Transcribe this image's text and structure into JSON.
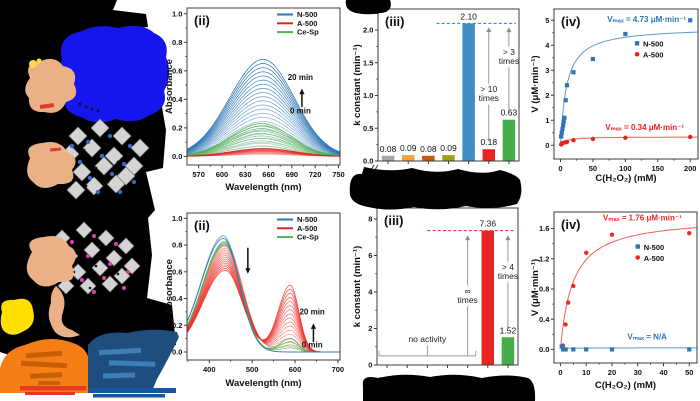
{
  "figure": {
    "background": "#ffffff",
    "redaction_color": "#000000"
  },
  "illustration": {
    "name": "redacted-synthesis-scheme",
    "colors": {
      "black": "#000000",
      "enzyme_blue": "#1515ee",
      "peach": "#e9b185",
      "peach_accent_red": "#e23b2e",
      "accent_yellow": "#ffd84d",
      "lattice_gray": "#d4d4d4",
      "lattice_edge": "#7a7a7a",
      "atom_blue": "#3a66c8",
      "atom_magenta": "#e03fae",
      "atom_black": "#111111",
      "atom_white": "#f5f5f5",
      "bright_yellow": "#ffdf00",
      "orange": "#f57f17",
      "orange_dark": "#c85f06",
      "navy": "#1d4e7e",
      "navy_light": "#3e7fb5",
      "red_text": "#e8391f",
      "blue_text": "#17579f"
    }
  },
  "chart_data": [
    {
      "id": "top-uvvis",
      "type": "spectra",
      "panel_label": "(ii)",
      "xlabel": "Wavelength (nm)",
      "ylabel": "Absorbance",
      "xlim": [
        555,
        752
      ],
      "ylim": [
        -0.06,
        1.04
      ],
      "xticks": [
        570,
        600,
        630,
        660,
        690,
        720,
        750
      ],
      "xtick_labels": [
        "570",
        "600",
        "630",
        "660",
        "690",
        "720",
        "750"
      ],
      "xminor": [
        585,
        615,
        645,
        675,
        705,
        735
      ],
      "yticks": [
        0,
        0.2,
        0.4,
        0.6,
        0.8,
        1.0
      ],
      "ytick_labels": [
        "0.0",
        "0.2",
        "0.4",
        "0.6",
        "0.8",
        "1.0"
      ],
      "yminor": [
        0.1,
        0.3,
        0.5,
        0.7,
        0.9
      ],
      "legend": [
        {
          "label": "N-500",
          "color": "#2e75b6"
        },
        {
          "label": "A-500",
          "color": "#e8231f"
        },
        {
          "label": "Ce-Sp",
          "color": "#55b355"
        }
      ],
      "families": [
        {
          "name": "N-500",
          "color": "#2e75b6",
          "n": 22,
          "op0": 0.3,
          "op1": 1,
          "peaks": [
            {
              "center": 653,
              "sl": 43,
              "sr": 40,
              "amp0": 0.07,
              "amp1": 0.68
            }
          ]
        },
        {
          "name": "Ce-Sp",
          "color": "#55b355",
          "n": 12,
          "op0": 0.35,
          "op1": 1,
          "peaks": [
            {
              "center": 651,
              "sl": 40,
              "sr": 38,
              "amp0": 0.04,
              "amp1": 0.23
            }
          ]
        },
        {
          "name": "A-500",
          "color": "#e8231f",
          "n": 8,
          "op0": 0.4,
          "op1": 1,
          "peaks": [
            {
              "center": 654,
              "sl": 42,
              "sr": 40,
              "amp0": 0.015,
              "amp1": 0.055
            }
          ]
        }
      ],
      "annotations": [
        {
          "type": "text",
          "text": "20 min",
          "x": 701,
          "y": 0.535,
          "color": "#111"
        },
        {
          "type": "arrow",
          "x": 703,
          "y0": 0.345,
          "y1": 0.475,
          "color": "#111"
        },
        {
          "type": "text",
          "text": "0 min",
          "x": 701,
          "y": 0.3,
          "color": "#111"
        }
      ]
    },
    {
      "id": "top-kconstant",
      "type": "bar",
      "panel_label": "(iii)",
      "ylabel": "k constant (min⁻¹)",
      "ylim": [
        0,
        2.32
      ],
      "yticks": [
        0,
        0.5,
        1.0,
        1.5,
        2.0
      ],
      "ytick_labels": [
        "0.0",
        "0.5",
        "1.0",
        "1.5",
        "2.0"
      ],
      "yminor": [
        0.25,
        0.75,
        1.25,
        1.75,
        2.25
      ],
      "axis_break": true,
      "bars": [
        {
          "value": 0.08,
          "label": "0.08",
          "color": "#a6a6a6"
        },
        {
          "value": 0.09,
          "label": "0.09",
          "color": "#f2a33a"
        },
        {
          "value": 0.08,
          "label": "0.08",
          "color": "#c05a11"
        },
        {
          "value": 0.09,
          "label": "0.09",
          "color": "#a89a1e"
        },
        {
          "value": 2.1,
          "label": "2.10",
          "color": "#3e8ec4"
        },
        {
          "value": 0.18,
          "label": "0.18",
          "color": "#ea2422"
        },
        {
          "value": 0.63,
          "label": "0.63",
          "color": "#45ad49"
        }
      ],
      "ref_line": {
        "y": 2.1,
        "color": "#3e8ec4",
        "from": 2.9
      },
      "annotations": [
        {
          "type": "bar-arrow",
          "slot": 5,
          "y0": 0.3,
          "y1": 2.04,
          "label": "> 10\ntimes",
          "label_y": 1.05
        },
        {
          "type": "bar-arrow",
          "slot": 6,
          "y0": 0.75,
          "y1": 2.04,
          "label": "> 3\ntimes",
          "label_y": 1.62
        }
      ]
    },
    {
      "id": "top-kinetics",
      "type": "mm",
      "panel_label": "(iv)",
      "xlabel": "C(H₂O₂) (mM)",
      "ylabel": "V (μM·min⁻¹)",
      "xlim": [
        -10,
        212
      ],
      "ylim": [
        -0.55,
        5.45
      ],
      "xticks": [
        0,
        50,
        100,
        150,
        200
      ],
      "xtick_labels": [
        "0",
        "50",
        "100",
        "150",
        "200"
      ],
      "xminor": [
        25,
        75,
        125,
        175
      ],
      "yticks": [
        0,
        1,
        2,
        3,
        4,
        5
      ],
      "ytick_labels": [
        "0",
        "1",
        "2",
        "3",
        "4",
        "5"
      ],
      "yminor": [
        0.5,
        1.5,
        2.5,
        3.5,
        4.5
      ],
      "series": [
        {
          "name": "N-500",
          "color": "#2e75b6",
          "marker": "square",
          "points": [
            [
              1,
              0.35
            ],
            [
              2,
              0.5
            ],
            [
              3,
              0.65
            ],
            [
              4,
              0.8
            ],
            [
              5,
              0.95
            ],
            [
              6,
              1.1
            ],
            [
              8,
              1.8
            ],
            [
              10,
              2.4
            ],
            [
              20,
              2.92
            ],
            [
              50,
              3.45
            ],
            [
              100,
              4.45
            ],
            [
              200,
              5.0
            ]
          ],
          "fit": {
            "vmax": 4.73,
            "km": 9.5
          },
          "vmax_label": {
            "text": "Vₘₐₓ = 4.73 μM·min⁻¹",
            "x": 72,
            "y": 4.93,
            "anchor": "start"
          }
        },
        {
          "name": "A-500",
          "color": "#e8231f",
          "marker": "circle",
          "points": [
            [
              1,
              0.03
            ],
            [
              2,
              0.05
            ],
            [
              3,
              0.08
            ],
            [
              5,
              0.1
            ],
            [
              8,
              0.12
            ],
            [
              10,
              0.13
            ],
            [
              20,
              0.2
            ],
            [
              50,
              0.25
            ],
            [
              100,
              0.3
            ],
            [
              200,
              0.33
            ]
          ],
          "fit": {
            "vmax": 0.34,
            "km": 8
          },
          "vmax_label": {
            "text": "Vₘₐₓ = 0.34 μM·min⁻¹",
            "x": 69,
            "y": 0.61,
            "anchor": "start"
          }
        }
      ],
      "legend": {
        "x": 118,
        "y": 3.95,
        "items": [
          {
            "label": "N-500",
            "color": "#2e75b6",
            "marker": "square"
          },
          {
            "label": "A-500",
            "color": "#e8231f",
            "marker": "circle"
          }
        ]
      }
    },
    {
      "id": "bottom-uvvis",
      "type": "spectra",
      "panel_label": "(ii)",
      "xlabel": "Wavelength (nm)",
      "ylabel": "Absorbance",
      "xlim": [
        348,
        705
      ],
      "ylim": [
        -0.06,
        1.04
      ],
      "xticks": [
        400,
        500,
        600,
        700
      ],
      "xtick_labels": [
        "400",
        "500",
        "600",
        "700"
      ],
      "xminor": [
        350,
        450,
        550,
        650
      ],
      "yticks": [
        0,
        0.2,
        0.4,
        0.6,
        0.8,
        1.0
      ],
      "ytick_labels": [
        "0.0",
        "0.2",
        "0.4",
        "0.6",
        "0.8",
        "1.0"
      ],
      "yminor": [
        0.1,
        0.3,
        0.5,
        0.7,
        0.9
      ],
      "legend": [
        {
          "label": "N-500",
          "color": "#2e75b6"
        },
        {
          "label": "A-500",
          "color": "#e8231f"
        },
        {
          "label": "Ce-Sp",
          "color": "#55b355"
        }
      ],
      "families": [
        {
          "name": "A-500",
          "color": "#ee2a24",
          "n": 16,
          "op0": 0.4,
          "op1": 0.85,
          "peaks": [
            {
              "center": 437,
              "sl": 52,
              "sr": 40,
              "amp0": 0.82,
              "amp1": 0.61
            },
            {
              "center": 589,
              "sl": 28,
              "sr": 20,
              "amp0": 0.04,
              "amp1": 0.5
            }
          ]
        },
        {
          "name": "Ce-Sp",
          "color": "#55b355",
          "n": 4,
          "op0": 0.7,
          "op1": 1,
          "peaks": [
            {
              "center": 436,
              "sl": 52,
              "sr": 37,
              "amp0": 0.83,
              "amp1": 0.8
            },
            {
              "center": 589,
              "sl": 24,
              "sr": 18,
              "amp0": 0.03,
              "amp1": 0.1
            }
          ]
        },
        {
          "name": "N-500",
          "color": "#2e75b6",
          "n": 2,
          "op0": 0.85,
          "op1": 1,
          "peaks": [
            {
              "center": 433,
              "sl": 52,
              "sr": 37,
              "amp0": 0.87,
              "amp1": 0.85
            }
          ]
        }
      ],
      "annotations": [
        {
          "type": "arrow",
          "x": 490,
          "y0": 0.78,
          "y1": 0.585,
          "color": "#111"
        },
        {
          "type": "text",
          "text": "20 min",
          "x": 640,
          "y": 0.28,
          "color": "#111"
        },
        {
          "type": "arrow",
          "x": 643,
          "y0": 0.075,
          "y1": 0.215,
          "color": "#111"
        },
        {
          "type": "text",
          "text": "0 min",
          "x": 640,
          "y": 0.035,
          "color": "#111"
        }
      ]
    },
    {
      "id": "bottom-kconstant",
      "type": "bar",
      "panel_label": "(iii)",
      "ylabel": "k constant (min⁻¹)",
      "ylim": [
        0,
        8.6
      ],
      "yticks": [
        0,
        2,
        4,
        6,
        8
      ],
      "ytick_labels": [
        "0",
        "2",
        "4",
        "6",
        "8"
      ],
      "yminor": [
        1,
        3,
        5,
        7
      ],
      "bars": [
        null,
        null,
        null,
        null,
        null,
        {
          "value": 7.36,
          "label": "7.36",
          "color": "#ea2422"
        },
        {
          "value": 1.52,
          "label": "1.52",
          "color": "#45ad49"
        }
      ],
      "ref_line": {
        "y": 7.36,
        "color": "#ea2422",
        "from": 2.5
      },
      "annotations": [
        {
          "type": "bar-arrow",
          "slot": 4,
          "y0": 0.55,
          "y1": 7.1,
          "label": "∞\ntimes",
          "label_y": 3.9
        },
        {
          "type": "bar-arrow",
          "slot": 6,
          "y0": 2.0,
          "y1": 7.1,
          "label": "> 4\ntimes",
          "label_y": 5.2
        },
        {
          "type": "bracket",
          "from": 0,
          "to": 4,
          "y": 0.5,
          "label": "no activity",
          "label_y": 1.25
        }
      ]
    },
    {
      "id": "bottom-kinetics",
      "type": "mm",
      "panel_label": "(iv)",
      "xlabel": "C(H₂O₂) (mM)",
      "ylabel": "V (μM·min⁻¹)",
      "xlim": [
        -2.5,
        53
      ],
      "ylim": [
        -0.18,
        1.82
      ],
      "xticks": [
        0,
        10,
        20,
        30,
        40,
        50
      ],
      "xtick_labels": [
        "0",
        "10",
        "20",
        "30",
        "40",
        "50"
      ],
      "xminor": [
        5,
        15,
        25,
        35,
        45
      ],
      "yticks": [
        0,
        0.4,
        0.8,
        1.2,
        1.6
      ],
      "ytick_labels": [
        "0.0",
        "0.4",
        "0.8",
        "1.2",
        "1.6"
      ],
      "yminor": [
        0.2,
        0.6,
        1.0,
        1.4
      ],
      "series": [
        {
          "name": "A-500",
          "color": "#ee2a24",
          "marker": "circle",
          "points": [
            [
              1,
              0.05
            ],
            [
              2,
              0.33
            ],
            [
              3,
              0.62
            ],
            [
              5,
              0.84
            ],
            [
              10,
              1.28
            ],
            [
              20,
              1.52
            ],
            [
              50,
              1.54
            ]
          ],
          "fit": {
            "vmax": 1.76,
            "km": 4.8
          },
          "vmax_label": {
            "text": "Vₘₐₓ = 1.76 μM·min⁻¹",
            "x": 16.5,
            "y": 1.71,
            "anchor": "start"
          }
        },
        {
          "name": "N-500",
          "color": "#2e75b6",
          "marker": "square",
          "points": [
            [
              0.5,
              0.04
            ],
            [
              1,
              0.0
            ],
            [
              2,
              0.0
            ],
            [
              5,
              0.0
            ],
            [
              10,
              0.0
            ],
            [
              20,
              0.0
            ],
            [
              50,
              0.0
            ]
          ],
          "fit": {
            "vmax": 0.02,
            "km": 1
          },
          "vmax_label": {
            "text": "Vₘₐₓ = N/A",
            "x": 26,
            "y": 0.13,
            "anchor": "start"
          }
        }
      ],
      "legend": {
        "x": 30,
        "y": 1.32,
        "items": [
          {
            "label": "N-500",
            "color": "#2e75b6",
            "marker": "square"
          },
          {
            "label": "A-500",
            "color": "#ee2a24",
            "marker": "circle"
          }
        ]
      }
    }
  ]
}
